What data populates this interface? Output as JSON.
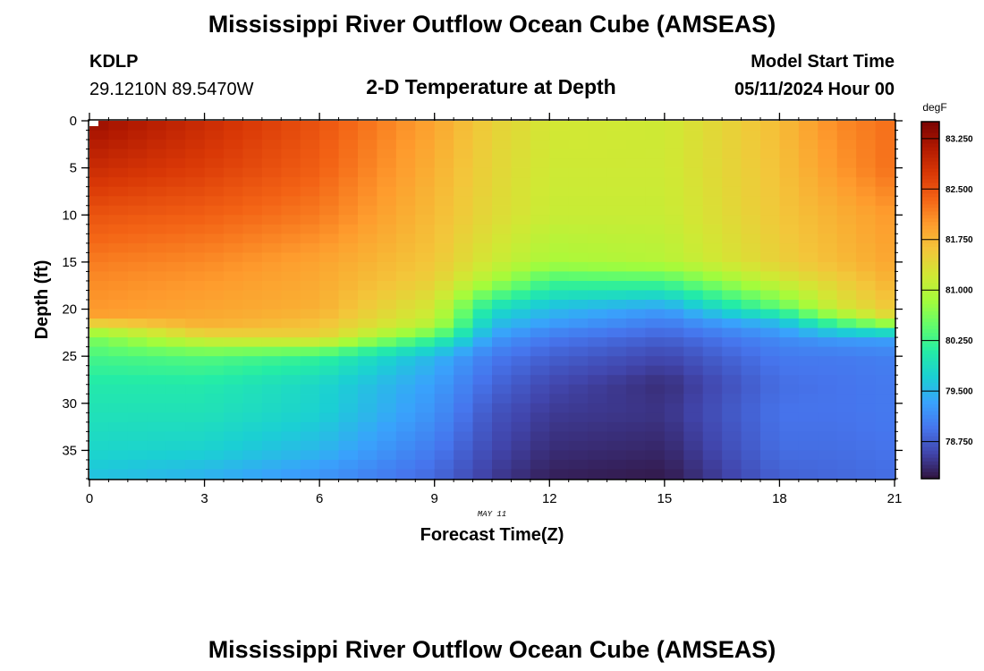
{
  "header": {
    "title": "Mississippi River Outflow Ocean Cube (AMSEAS)",
    "station_id": "KDLP",
    "station_coords": "29.1210N  89.5470W",
    "subtitle": "2-D Temperature at Depth",
    "model_label": "Model Start Time",
    "model_time": "05/11/2024 Hour 00"
  },
  "footer": {
    "title": "Mississippi River Outflow Ocean Cube (AMSEAS)"
  },
  "chart_data": {
    "type": "heatmap",
    "title": "2-D Temperature at Depth",
    "xlabel": "Forecast Time(Z)",
    "ylabel": "Depth (ft)",
    "x_annotation": "MAY 11",
    "xlim": [
      0,
      21
    ],
    "ylim": [
      0,
      38
    ],
    "y_inverted": true,
    "x_ticks": [
      0,
      3,
      6,
      9,
      12,
      15,
      18,
      21
    ],
    "x_tick_labels": [
      "0",
      "3",
      "6",
      "9",
      "12",
      "15",
      "18",
      "21"
    ],
    "y_ticks": [
      0,
      5,
      10,
      15,
      20,
      25,
      30,
      35
    ],
    "y_tick_labels": [
      "0",
      "5",
      "10",
      "15",
      "20",
      "25",
      "30",
      "35"
    ],
    "grid": false,
    "colorbar": {
      "label": "degF",
      "min": 78.2,
      "max": 83.5,
      "ticks": [
        78.75,
        79.5,
        80.25,
        81.0,
        81.75,
        82.5,
        83.25
      ],
      "tick_labels": [
        "78.750",
        "79.500",
        "80.250",
        "81.000",
        "81.750",
        "82.500",
        "83.250"
      ],
      "colormap": [
        "#30123b",
        "#4145ab",
        "#4675ed",
        "#39a2fc",
        "#1bcfd4",
        "#24eca6",
        "#61fc6c",
        "#a4fc3b",
        "#d1e834",
        "#f3c63a",
        "#fe9b2d",
        "#f36315",
        "#d93806",
        "#b11901",
        "#7a0402"
      ]
    },
    "profiles": {
      "times": [
        0,
        3,
        6,
        9,
        10.5,
        12,
        15,
        18,
        19.5,
        21
      ],
      "depths": [
        0,
        5,
        10,
        15,
        17,
        20,
        21,
        22,
        23,
        25,
        28,
        31,
        35,
        38
      ],
      "temperatures": [
        [
          83.3,
          82.9,
          82.5,
          82.2,
          82.1,
          82.0,
          81.9,
          81.1,
          80.6,
          80.3,
          80.05,
          79.95,
          79.8,
          79.6
        ],
        [
          82.9,
          82.7,
          82.4,
          82.1,
          82.0,
          81.9,
          81.85,
          81.75,
          81.3,
          80.4,
          80.05,
          79.95,
          79.75,
          79.45
        ],
        [
          82.5,
          82.4,
          82.2,
          81.9,
          81.85,
          81.8,
          81.7,
          81.6,
          81.45,
          80.2,
          79.8,
          79.75,
          79.5,
          79.2
        ],
        [
          81.9,
          81.8,
          81.7,
          81.6,
          81.5,
          81.2,
          81.1,
          80.9,
          80.3,
          79.5,
          79.3,
          79.2,
          79.0,
          78.85
        ],
        [
          81.5,
          81.45,
          81.4,
          81.2,
          80.9,
          79.9,
          79.7,
          79.5,
          79.3,
          79.0,
          78.85,
          78.7,
          78.6,
          78.5
        ],
        [
          81.25,
          81.2,
          81.15,
          80.9,
          80.3,
          79.55,
          79.4,
          79.2,
          79.0,
          78.8,
          78.6,
          78.5,
          78.4,
          78.3
        ],
        [
          81.2,
          81.2,
          81.15,
          81.0,
          80.35,
          79.3,
          79.1,
          78.95,
          78.8,
          78.6,
          78.4,
          78.45,
          78.35,
          78.25
        ],
        [
          81.7,
          81.65,
          81.6,
          81.5,
          81.2,
          80.4,
          79.7,
          79.4,
          79.15,
          79.0,
          78.9,
          78.95,
          78.9,
          78.8
        ],
        [
          82.1,
          82.0,
          81.8,
          81.7,
          81.5,
          81.2,
          80.6,
          80.0,
          79.3,
          79.0,
          78.95,
          78.95,
          78.9,
          78.85
        ],
        [
          82.3,
          82.3,
          82.0,
          81.9,
          81.8,
          81.6,
          81.35,
          80.4,
          79.35,
          79.05,
          79.0,
          79.0,
          78.95,
          78.9
        ]
      ]
    }
  }
}
